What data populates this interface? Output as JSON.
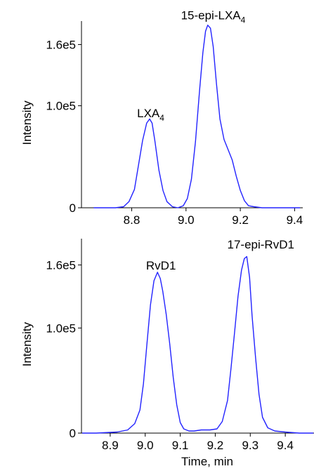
{
  "chart_data": [
    {
      "type": "line",
      "title": "",
      "xlabel": "",
      "ylabel": "Intensity",
      "xlim": [
        8.615,
        9.43
      ],
      "ylim": [
        0,
        1.83
      ],
      "y_unit_multiplier": 100000,
      "x_ticks": [
        8.8,
        9.0,
        9.2,
        9.4
      ],
      "x_tick_labels": [
        "8.8",
        "9.0",
        "9.2",
        "9.4"
      ],
      "y_ticks": [
        0,
        1.0,
        1.6
      ],
      "y_tick_labels": [
        "0",
        "1.0e5",
        "1.6e5"
      ],
      "color": "#2323ff",
      "annotations": [
        {
          "text": "LXA",
          "sub": "4",
          "x": 8.87,
          "y": 0.86
        },
        {
          "text": "15-epi-LXA",
          "sub": "4",
          "x": 9.1,
          "y": 1.82
        }
      ],
      "series": [
        {
          "x": [
            8.66,
            8.7,
            8.74,
            8.77,
            8.79,
            8.81,
            8.825,
            8.84,
            8.855,
            8.866,
            8.875,
            8.885,
            8.9,
            8.915,
            8.93,
            8.95,
            8.97,
            8.99,
            9.005,
            9.02,
            9.035,
            9.05,
            9.062,
            9.072,
            9.08,
            9.09,
            9.1,
            9.112,
            9.125,
            9.14,
            9.155,
            9.17,
            9.185,
            9.2,
            9.215,
            9.23,
            9.25,
            9.28,
            9.32,
            9.38,
            9.42
          ],
          "y": [
            0.0,
            0.0,
            0.0,
            0.01,
            0.06,
            0.18,
            0.42,
            0.66,
            0.83,
            0.87,
            0.83,
            0.66,
            0.37,
            0.17,
            0.06,
            0.01,
            0.0,
            0.02,
            0.09,
            0.28,
            0.65,
            1.15,
            1.52,
            1.73,
            1.79,
            1.76,
            1.58,
            1.22,
            0.87,
            0.67,
            0.57,
            0.47,
            0.31,
            0.17,
            0.07,
            0.02,
            0.01,
            0.0,
            0.0,
            0.0,
            0.0
          ]
        }
      ]
    },
    {
      "type": "line",
      "title": "",
      "xlabel": "Time, min",
      "ylabel": "Intensity",
      "xlim": [
        8.818,
        9.482
      ],
      "ylim": [
        0,
        1.85
      ],
      "y_unit_multiplier": 100000,
      "x_ticks": [
        8.9,
        9.0,
        9.1,
        9.2,
        9.3,
        9.4
      ],
      "x_tick_labels": [
        "8.9",
        "9.0",
        "9.1",
        "9.2",
        "9.3",
        "9.4"
      ],
      "y_ticks": [
        0,
        1.0,
        1.6
      ],
      "y_tick_labels": [
        "0",
        "1.0e5",
        "1.6e5"
      ],
      "color": "#2323ff",
      "annotations": [
        {
          "text": "RvD1",
          "sub": "",
          "x": 9.045,
          "y": 1.53
        },
        {
          "text": "17-epi-RvD1",
          "sub": "",
          "x": 9.33,
          "y": 1.73
        }
      ],
      "series": [
        {
          "x": [
            8.82,
            8.86,
            8.92,
            8.95,
            8.97,
            8.985,
            8.995,
            9.005,
            9.015,
            9.025,
            9.035,
            9.043,
            9.05,
            9.06,
            9.07,
            9.08,
            9.09,
            9.1,
            9.11,
            9.125,
            9.14,
            9.16,
            9.185,
            9.205,
            9.22,
            9.235,
            9.245,
            9.255,
            9.265,
            9.275,
            9.283,
            9.29,
            9.298,
            9.305,
            9.315,
            9.325,
            9.335,
            9.35,
            9.37,
            9.4,
            9.44,
            9.48
          ],
          "y": [
            0.0,
            0.0,
            0.01,
            0.03,
            0.09,
            0.22,
            0.47,
            0.85,
            1.22,
            1.45,
            1.53,
            1.47,
            1.35,
            1.13,
            0.85,
            0.53,
            0.27,
            0.1,
            0.04,
            0.02,
            0.02,
            0.03,
            0.03,
            0.04,
            0.11,
            0.31,
            0.62,
            0.95,
            1.3,
            1.55,
            1.66,
            1.68,
            1.48,
            1.12,
            0.72,
            0.37,
            0.15,
            0.05,
            0.02,
            0.01,
            0.0,
            0.0
          ]
        }
      ]
    }
  ]
}
